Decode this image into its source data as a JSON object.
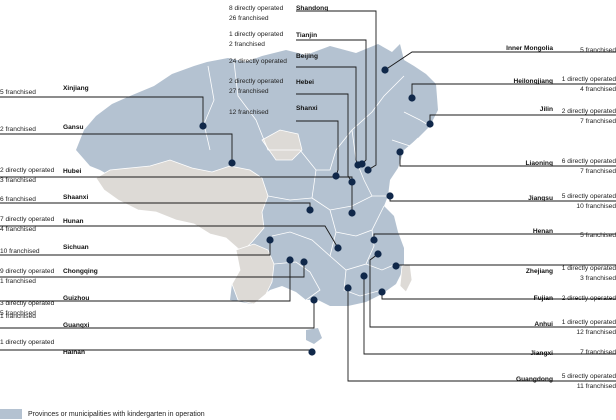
{
  "colors": {
    "operated": "#b4c2d1",
    "other": "#dddad6",
    "border": "#ffffff",
    "leader": "#1a1a1a",
    "dot": "#10284a"
  },
  "legend": {
    "text": "Provinces or municipalities with kindergarten in operation"
  },
  "provinces": [
    {
      "key": "shandong",
      "name": "Shandong",
      "lines": [
        "8 directly operated",
        "26 franchised"
      ]
    },
    {
      "key": "tianjin",
      "name": "Tianjin",
      "lines": [
        "1 directly operated",
        "2 franchised"
      ]
    },
    {
      "key": "beijing",
      "name": "Beijing",
      "lines": [
        "24 directly operated"
      ]
    },
    {
      "key": "hebei",
      "name": "Hebei",
      "lines": [
        "2 directly operated",
        "27 franchised"
      ]
    },
    {
      "key": "shanxi",
      "name": "Shanxi",
      "lines": [
        "12 franchised"
      ]
    },
    {
      "key": "xinjiang",
      "name": "Xinjiang",
      "lines": [
        "5 franchised"
      ]
    },
    {
      "key": "gansu",
      "name": "Gansu",
      "lines": [
        "2 franchised"
      ]
    },
    {
      "key": "hubei",
      "name": "Hubei",
      "lines": [
        "2 directly operated",
        "3 franchised"
      ]
    },
    {
      "key": "shaanxi",
      "name": "Shaanxi",
      "lines": [
        "6 franchised"
      ]
    },
    {
      "key": "hunan",
      "name": "Hunan",
      "lines": [
        "7 directly operated",
        "4 franchised"
      ]
    },
    {
      "key": "sichuan",
      "name": "Sichuan",
      "lines": [
        "10 franchised"
      ]
    },
    {
      "key": "chongqing",
      "name": "Chongqing",
      "lines": [
        "9 directly operated",
        "1 franchised"
      ]
    },
    {
      "key": "guizhou",
      "name": "Guizhou",
      "lines": [
        "3 directly operated",
        "5 franchised"
      ]
    },
    {
      "key": "guangxi",
      "name": "Guangxi",
      "lines": [
        "1 franchised"
      ]
    },
    {
      "key": "hainan",
      "name": "Hainan",
      "lines": [
        "1 directly operated"
      ]
    },
    {
      "key": "inner_mongolia",
      "name": "Inner Mongolia",
      "lines": [
        "5 franchised"
      ]
    },
    {
      "key": "heilongjiang",
      "name": "Heilongjiang",
      "lines": [
        "1 directly operated",
        "4 franchised"
      ]
    },
    {
      "key": "jilin",
      "name": "Jilin",
      "lines": [
        "2 directly operated",
        "7 franchised"
      ]
    },
    {
      "key": "liaoning",
      "name": "Liaoning",
      "lines": [
        "6 directly operated",
        "7 franchised"
      ]
    },
    {
      "key": "jiangsu",
      "name": "Jiangsu",
      "lines": [
        "5 directly operated",
        "10 franchised"
      ]
    },
    {
      "key": "henan",
      "name": "Henan",
      "lines": [
        "5 franchised"
      ]
    },
    {
      "key": "zhejiang",
      "name": "Zhejiang",
      "lines": [
        "1 directly operated",
        "3 franchised"
      ]
    },
    {
      "key": "fujian",
      "name": "Fujian",
      "lines": [
        "2 directly operated"
      ]
    },
    {
      "key": "anhui",
      "name": "Anhui",
      "lines": [
        "1 directly operated",
        "12 franchised"
      ]
    },
    {
      "key": "jiangxi",
      "name": "Jiangxi",
      "lines": [
        "7 franchised"
      ]
    },
    {
      "key": "guangdong",
      "name": "Guangdong",
      "lines": [
        "5 directly operated",
        "11 franchised"
      ]
    }
  ]
}
